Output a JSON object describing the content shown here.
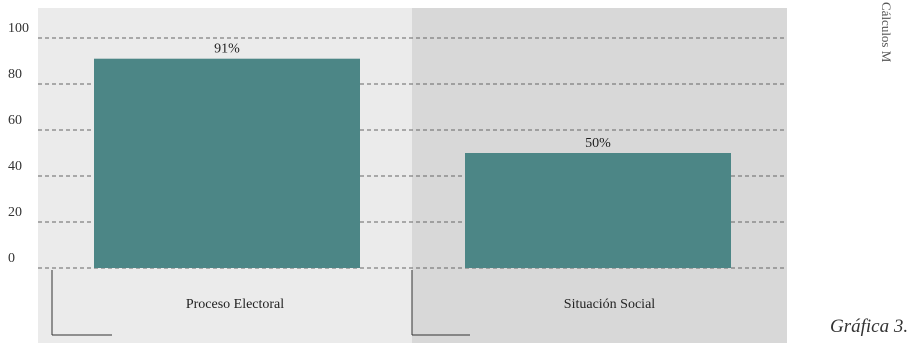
{
  "chart_data": {
    "type": "bar",
    "categories": [
      "Proceso Electoral",
      "Situación Social"
    ],
    "values": [
      91,
      50
    ],
    "data_labels": [
      "91%",
      "50%"
    ],
    "title": "",
    "xlabel": "",
    "ylabel": "",
    "ylim": [
      0,
      100
    ],
    "yticks": [
      "0",
      "20",
      "40",
      "60",
      "80",
      "100"
    ],
    "grid": true,
    "colors": {
      "bar": "#4c8686",
      "panel_left": "#ebebeb",
      "panel_right": "#d8d8d8",
      "grid": "#666666"
    }
  },
  "side_note": "Cálculos M",
  "caption": "Gráfica 3."
}
